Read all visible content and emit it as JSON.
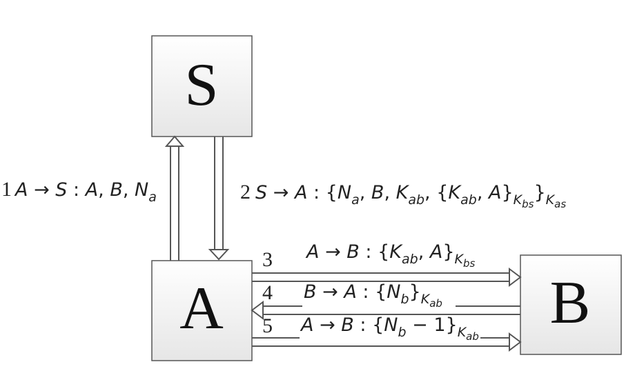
{
  "nodes": {
    "S": {
      "label": "S"
    },
    "A": {
      "label": "A"
    },
    "B": {
      "label": "B"
    }
  },
  "messages": [
    {
      "step": "1",
      "parts": [
        {
          "t": "A",
          "i": true
        },
        {
          "t": " → "
        },
        {
          "t": "S",
          "i": true
        },
        {
          "t": " : "
        },
        {
          "t": "A",
          "i": true
        },
        {
          "t": ", "
        },
        {
          "t": "B",
          "i": true
        },
        {
          "t": ", "
        },
        {
          "t": "N",
          "i": true
        },
        {
          "t": "a",
          "i": true,
          "sub": 1
        }
      ]
    },
    {
      "step": "2",
      "parts": [
        {
          "t": "S",
          "i": true
        },
        {
          "t": " → "
        },
        {
          "t": "A",
          "i": true
        },
        {
          "t": " : {"
        },
        {
          "t": "N",
          "i": true
        },
        {
          "t": "a",
          "i": true,
          "sub": 1
        },
        {
          "t": ", "
        },
        {
          "t": "B",
          "i": true
        },
        {
          "t": ", "
        },
        {
          "t": "K",
          "i": true
        },
        {
          "t": "ab",
          "i": true,
          "sub": 1
        },
        {
          "t": ", {"
        },
        {
          "t": "K",
          "i": true
        },
        {
          "t": "ab",
          "i": true,
          "sub": 1
        },
        {
          "t": ", "
        },
        {
          "t": "A",
          "i": true
        },
        {
          "t": "}"
        },
        {
          "t": "K",
          "i": true,
          "sub": 1
        },
        {
          "t": "bs",
          "i": true,
          "sub": 2
        },
        {
          "t": "}"
        },
        {
          "t": "K",
          "i": true,
          "sub": 1
        },
        {
          "t": "as",
          "i": true,
          "sub": 2
        }
      ]
    },
    {
      "step": "3",
      "parts": [
        {
          "t": "A",
          "i": true
        },
        {
          "t": " → "
        },
        {
          "t": "B",
          "i": true
        },
        {
          "t": " : {"
        },
        {
          "t": "K",
          "i": true
        },
        {
          "t": "ab",
          "i": true,
          "sub": 1
        },
        {
          "t": ", "
        },
        {
          "t": "A",
          "i": true
        },
        {
          "t": "}"
        },
        {
          "t": "K",
          "i": true,
          "sub": 1
        },
        {
          "t": "bs",
          "i": true,
          "sub": 2
        }
      ]
    },
    {
      "step": "4",
      "parts": [
        {
          "t": "B",
          "i": true
        },
        {
          "t": " → "
        },
        {
          "t": "A",
          "i": true
        },
        {
          "t": " : {"
        },
        {
          "t": "N",
          "i": true
        },
        {
          "t": "b",
          "i": true,
          "sub": 1
        },
        {
          "t": "}"
        },
        {
          "t": "K",
          "i": true,
          "sub": 1
        },
        {
          "t": "ab",
          "i": true,
          "sub": 2
        }
      ]
    },
    {
      "step": "5",
      "parts": [
        {
          "t": "A",
          "i": true
        },
        {
          "t": " → "
        },
        {
          "t": "B",
          "i": true
        },
        {
          "t": " : {"
        },
        {
          "t": "N",
          "i": true
        },
        {
          "t": "b",
          "i": true,
          "sub": 1
        },
        {
          "t": " − 1}"
        },
        {
          "t": "K",
          "i": true,
          "sub": 1
        },
        {
          "t": "ab",
          "i": true,
          "sub": 2
        }
      ]
    }
  ]
}
